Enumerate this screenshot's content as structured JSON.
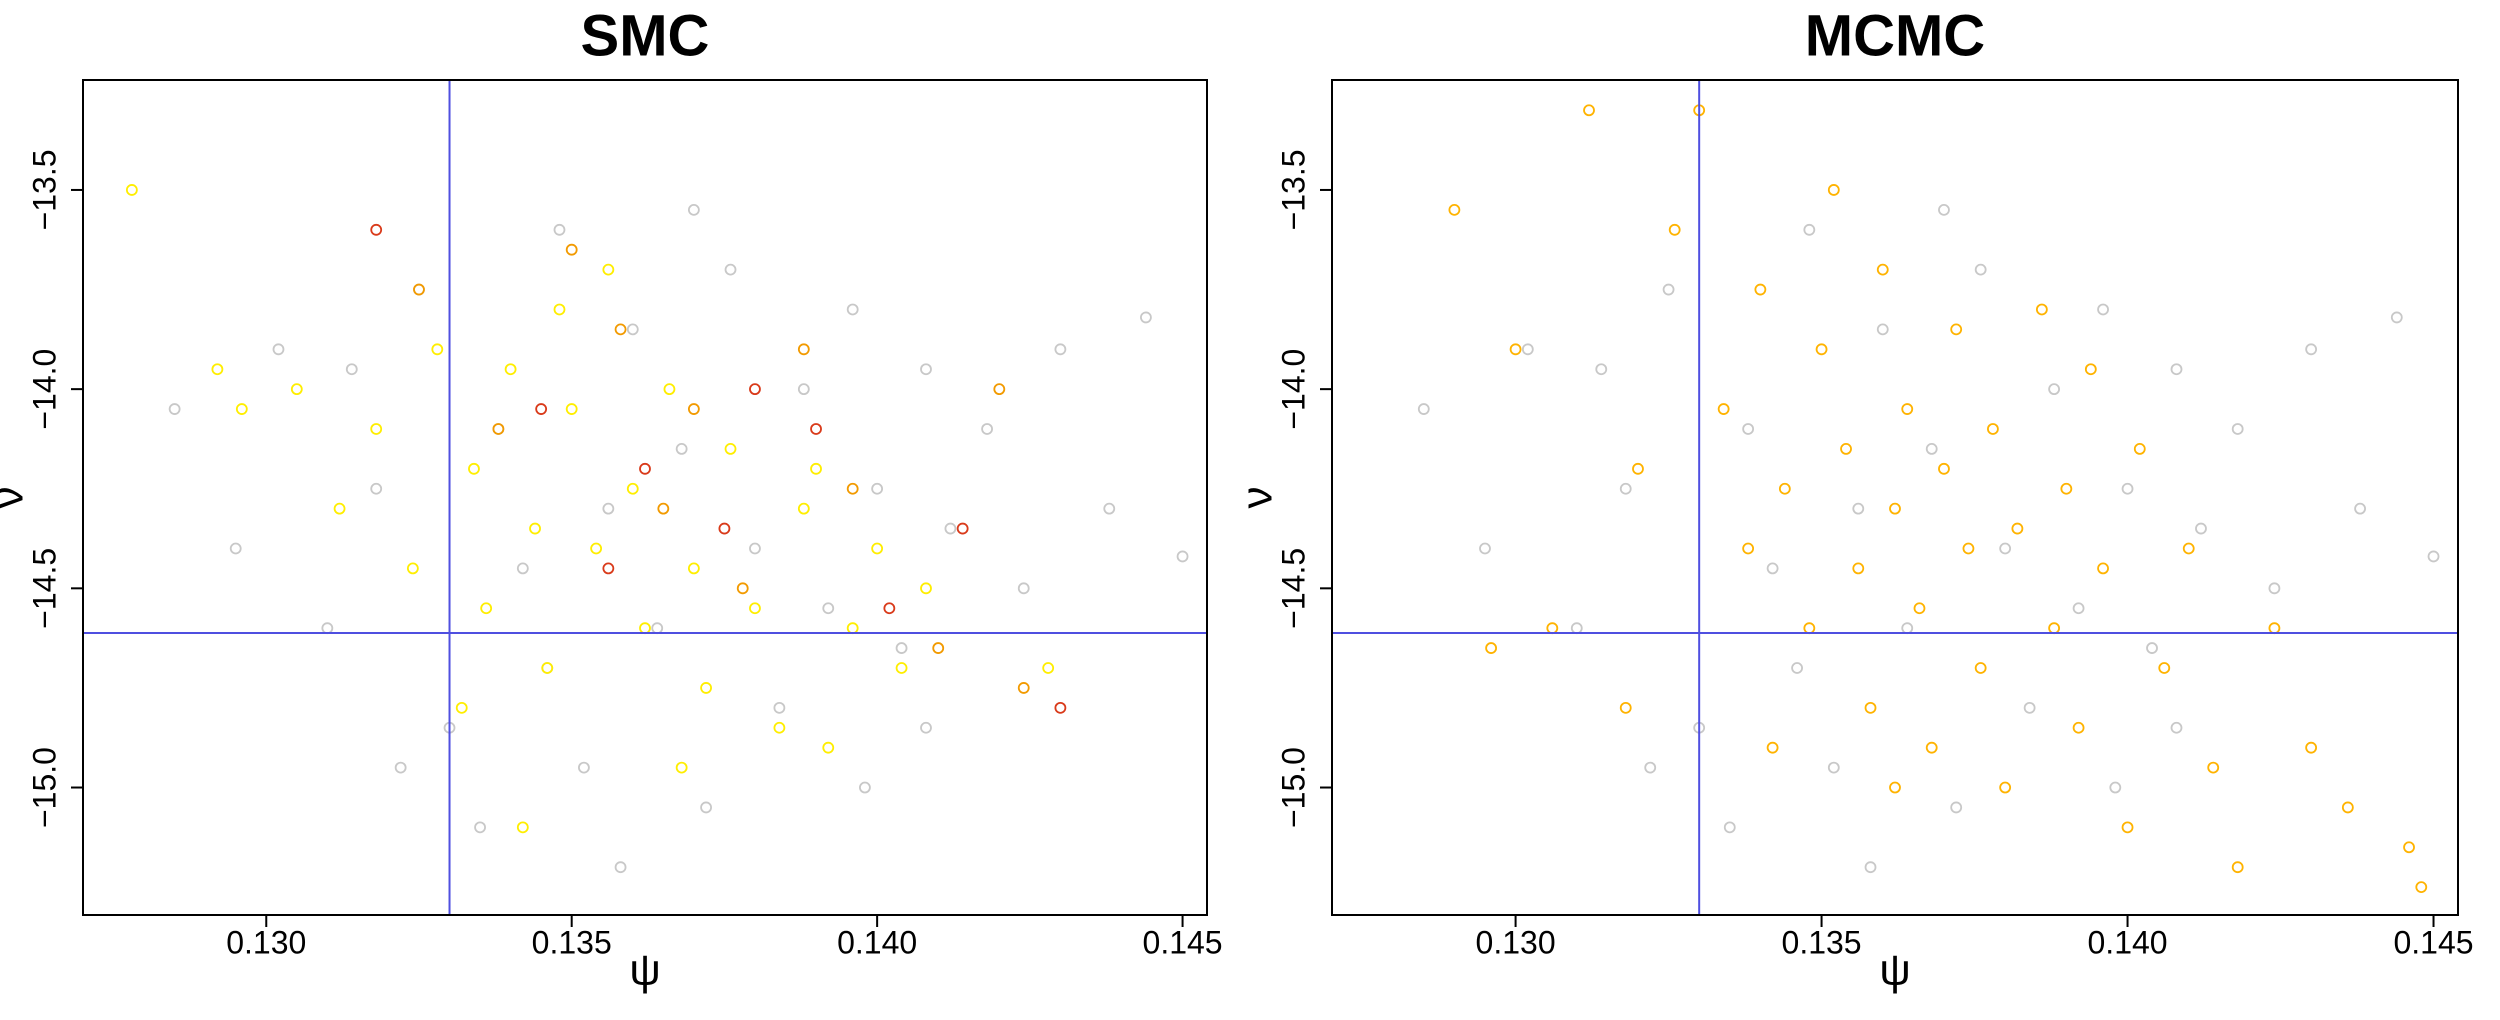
{
  "chart_data": [
    {
      "type": "scatter",
      "title": "SMC",
      "x_label": "ψ",
      "y_label": "ν",
      "xlim": [
        0.127,
        0.1454
      ],
      "ylim": [
        -15.32,
        -13.224
      ],
      "xticks": [
        {
          "value": 0.13,
          "label": "0.130"
        },
        {
          "value": 0.135,
          "label": "0.135"
        },
        {
          "value": 0.14,
          "label": "0.140"
        },
        {
          "value": 0.145,
          "label": "0.145"
        }
      ],
      "yticks": [
        {
          "value": -13.5,
          "label": "−13.5"
        },
        {
          "value": -14,
          "label": "−14.0"
        },
        {
          "value": -14.5,
          "label": "−14.5"
        },
        {
          "value": -15,
          "label": "−15.0"
        }
      ],
      "vline": 0.133,
      "hline": -14.612,
      "line_color": "#4f4fe0",
      "series": [
        {
          "color": "#c8c8c8",
          "x": [
            0.1285,
            0.1295,
            0.1302,
            0.131,
            0.1318,
            0.1325,
            0.133,
            0.1338,
            0.1342,
            0.1348,
            0.1352,
            0.1356,
            0.136,
            0.1364,
            0.1368,
            0.1372,
            0.1376,
            0.138,
            0.1384,
            0.1388,
            0.1392,
            0.1396,
            0.14,
            0.1404,
            0.1408,
            0.1412,
            0.1418,
            0.1424,
            0.143,
            0.1438,
            0.1444,
            0.145,
            0.1335,
            0.1358,
            0.1322,
            0.1346,
            0.137,
            0.1398,
            0.1314,
            0.1408
          ],
          "y": [
            -14.05,
            -14.4,
            -13.9,
            -14.6,
            -14.25,
            -13.75,
            -14.85,
            -14.1,
            -14.45,
            -13.6,
            -14.95,
            -14.3,
            -13.85,
            -14.6,
            -14.15,
            -15.05,
            -13.7,
            -14.4,
            -14.8,
            -14.0,
            -14.55,
            -13.8,
            -14.25,
            -14.65,
            -13.95,
            -14.35,
            -14.1,
            -14.5,
            -13.9,
            -14.3,
            -13.82,
            -14.42,
            -15.1,
            -15.2,
            -14.95,
            -14.7,
            -13.55,
            -15.0,
            -13.95,
            -14.85
          ]
        },
        {
          "color": "#ffee00",
          "x": [
            0.1278,
            0.1292,
            0.1296,
            0.1305,
            0.1312,
            0.1318,
            0.1324,
            0.1328,
            0.1334,
            0.1336,
            0.134,
            0.1344,
            0.1346,
            0.135,
            0.1354,
            0.1356,
            0.136,
            0.1362,
            0.1366,
            0.137,
            0.1372,
            0.1376,
            0.138,
            0.1384,
            0.1388,
            0.1392,
            0.1396,
            0.14,
            0.1404,
            0.1408,
            0.1332,
            0.1348,
            0.1368,
            0.1342,
            0.1428,
            0.139
          ],
          "y": [
            -13.5,
            -13.95,
            -14.05,
            -14.0,
            -14.3,
            -14.1,
            -14.45,
            -13.9,
            -14.2,
            -14.55,
            -13.95,
            -14.35,
            -14.7,
            -14.05,
            -14.4,
            -13.7,
            -14.25,
            -14.6,
            -14.0,
            -14.45,
            -14.75,
            -14.15,
            -14.55,
            -14.85,
            -14.3,
            -14.9,
            -14.6,
            -14.4,
            -14.7,
            -14.5,
            -14.8,
            -13.8,
            -14.95,
            -15.1,
            -14.7,
            -14.2
          ]
        },
        {
          "color": "#f29a00",
          "x": [
            0.1325,
            0.1338,
            0.135,
            0.1365,
            0.1378,
            0.1388,
            0.1396,
            0.141,
            0.142,
            0.1424,
            0.137,
            0.1358
          ],
          "y": [
            -13.75,
            -14.1,
            -13.65,
            -14.3,
            -14.5,
            -13.9,
            -14.25,
            -14.65,
            -14.0,
            -14.75,
            -14.05,
            -13.85
          ]
        },
        {
          "color": "#d93a1a",
          "x": [
            0.1318,
            0.1345,
            0.1362,
            0.1375,
            0.139,
            0.1402,
            0.1414,
            0.143,
            0.138,
            0.1356
          ],
          "y": [
            -13.6,
            -14.05,
            -14.2,
            -14.35,
            -14.1,
            -14.55,
            -14.35,
            -14.8,
            -14.0,
            -14.45
          ]
        }
      ]
    },
    {
      "type": "scatter",
      "title": "MCMC",
      "x_label": "ψ",
      "y_label": "ν",
      "xlim": [
        0.127,
        0.1454
      ],
      "ylim": [
        -15.32,
        -13.224
      ],
      "xticks": [
        {
          "value": 0.13,
          "label": "0.130"
        },
        {
          "value": 0.135,
          "label": "0.135"
        },
        {
          "value": 0.14,
          "label": "0.140"
        },
        {
          "value": 0.145,
          "label": "0.145"
        }
      ],
      "yticks": [
        {
          "value": -13.5,
          "label": "−13.5"
        },
        {
          "value": -14,
          "label": "−14.0"
        },
        {
          "value": -14.5,
          "label": "−14.5"
        },
        {
          "value": -15,
          "label": "−15.0"
        }
      ],
      "vline": 0.133,
      "hline": -14.612,
      "line_color": "#4f4fe0",
      "series": [
        {
          "color": "#c8c8c8",
          "x": [
            0.1285,
            0.1295,
            0.1302,
            0.131,
            0.1318,
            0.1325,
            0.133,
            0.1338,
            0.1342,
            0.1348,
            0.1352,
            0.1356,
            0.136,
            0.1364,
            0.1368,
            0.1372,
            0.1376,
            0.138,
            0.1384,
            0.1388,
            0.1392,
            0.1396,
            0.14,
            0.1404,
            0.1408,
            0.1412,
            0.1418,
            0.1424,
            0.143,
            0.1438,
            0.1444,
            0.145,
            0.1335,
            0.1358,
            0.1322,
            0.1346,
            0.137,
            0.1398,
            0.1314,
            0.1408
          ],
          "y": [
            -14.05,
            -14.4,
            -13.9,
            -14.6,
            -14.25,
            -13.75,
            -14.85,
            -14.1,
            -14.45,
            -13.6,
            -14.95,
            -14.3,
            -13.85,
            -14.6,
            -14.15,
            -15.05,
            -13.7,
            -14.4,
            -14.8,
            -14.0,
            -14.55,
            -13.8,
            -14.25,
            -14.65,
            -13.95,
            -14.35,
            -14.1,
            -14.5,
            -13.9,
            -14.3,
            -13.82,
            -14.42,
            -15.1,
            -15.2,
            -14.95,
            -14.7,
            -13.55,
            -15.0,
            -13.95,
            -14.85
          ]
        },
        {
          "color": "#ffb300",
          "x": [
            0.129,
            0.13,
            0.1312,
            0.132,
            0.1326,
            0.133,
            0.1334,
            0.1338,
            0.134,
            0.1344,
            0.1348,
            0.135,
            0.1354,
            0.1356,
            0.1358,
            0.136,
            0.1362,
            0.1364,
            0.1366,
            0.1368,
            0.137,
            0.1372,
            0.1374,
            0.1376,
            0.1378,
            0.138,
            0.1382,
            0.1386,
            0.1388,
            0.139,
            0.1392,
            0.1396,
            0.14,
            0.1402,
            0.1406,
            0.141,
            0.1414,
            0.1418,
            0.1424,
            0.143,
            0.1436,
            0.1446,
            0.1448,
            0.1306,
            0.1296,
            0.1318,
            0.1342,
            0.1362,
            0.1394,
            0.1352
          ],
          "y": [
            -13.55,
            -13.9,
            -13.3,
            -14.2,
            -13.6,
            -13.3,
            -14.05,
            -14.4,
            -13.75,
            -14.25,
            -14.6,
            -13.9,
            -14.15,
            -14.45,
            -14.8,
            -13.7,
            -14.3,
            -14.05,
            -14.55,
            -14.9,
            -14.2,
            -13.85,
            -14.4,
            -14.7,
            -14.1,
            -15.0,
            -14.35,
            -13.8,
            -14.6,
            -14.25,
            -14.85,
            -14.45,
            -15.1,
            -14.15,
            -14.7,
            -14.4,
            -14.95,
            -15.2,
            -14.6,
            -14.9,
            -15.05,
            -15.15,
            -15.25,
            -14.6,
            -14.65,
            -14.8,
            -14.9,
            -15.0,
            -13.95,
            -13.5
          ]
        }
      ]
    }
  ]
}
